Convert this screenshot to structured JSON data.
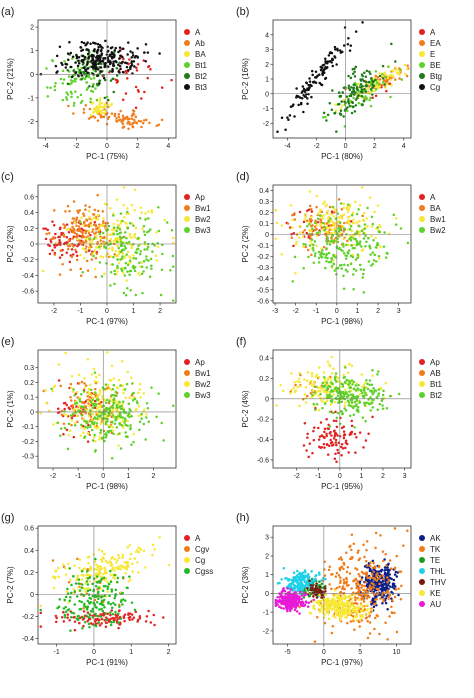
{
  "chart_data": [
    {
      "type": "scatter",
      "panel_label": "(a)",
      "xlabel": "PC-1 (75%)",
      "ylabel": "PC-2 (21%)",
      "xlim": [
        -4.5,
        4.5
      ],
      "ylim": [
        -2.7,
        2.3
      ],
      "xticks": [
        -4,
        -2,
        0,
        2,
        4
      ],
      "yticks": [
        -2,
        -1,
        0,
        1,
        2
      ],
      "grid": false,
      "legend_position": "right",
      "series": [
        {
          "name": "A",
          "color": "#e32222",
          "n": 40,
          "cx": 1.6,
          "cy": -0.1,
          "sx": 1.0,
          "sy": 0.6,
          "rho": 0.0
        },
        {
          "name": "Ab",
          "color": "#f07c1a",
          "n": 90,
          "cx": 0.7,
          "cy": -1.8,
          "sx": 1.3,
          "sy": 0.22,
          "rho": -0.65
        },
        {
          "name": "BA",
          "color": "#f7e836",
          "n": 40,
          "cx": -0.4,
          "cy": -1.4,
          "sx": 0.5,
          "sy": 0.2,
          "rho": 0.0
        },
        {
          "name": "Bt1",
          "color": "#5ed12a",
          "n": 90,
          "cx": -1.8,
          "cy": -0.2,
          "sx": 0.9,
          "sy": 0.6,
          "rho": 0.1
        },
        {
          "name": "Bt2",
          "color": "#1f7a1a",
          "n": 60,
          "cx": -1.0,
          "cy": 0.1,
          "sx": 0.9,
          "sy": 0.45,
          "rho": 0.0
        },
        {
          "name": "Bt3",
          "color": "#111111",
          "n": 230,
          "cx": -0.4,
          "cy": 0.65,
          "sx": 1.2,
          "sy": 0.35,
          "rho": 0.0
        }
      ]
    },
    {
      "type": "scatter",
      "panel_label": "(b)",
      "xlabel": "PC-1 (80%)",
      "ylabel": "PC-2 (16%)",
      "xlim": [
        -5,
        4.5
      ],
      "ylim": [
        -3,
        5
      ],
      "xticks": [
        -4,
        -2,
        0,
        2,
        4
      ],
      "yticks": [
        -2,
        -1,
        0,
        1,
        2,
        3,
        4
      ],
      "grid": false,
      "legend_position": "right",
      "series": [
        {
          "name": "A",
          "color": "#e32222",
          "n": 12,
          "cx": 2.2,
          "cy": 0.2,
          "sx": 0.8,
          "sy": 0.4,
          "rho": 0.5
        },
        {
          "name": "EA",
          "color": "#f07c1a",
          "n": 50,
          "cx": 2.5,
          "cy": 0.8,
          "sx": 0.9,
          "sy": 0.5,
          "rho": 0.85
        },
        {
          "name": "E",
          "color": "#f7e836",
          "n": 90,
          "cx": 1.8,
          "cy": 0.5,
          "sx": 1.0,
          "sy": 0.6,
          "rho": 0.85
        },
        {
          "name": "BE",
          "color": "#5ed12a",
          "n": 50,
          "cx": 1.2,
          "cy": 0.0,
          "sx": 1.0,
          "sy": 0.7,
          "rho": 0.7
        },
        {
          "name": "Btg",
          "color": "#1f7a1a",
          "n": 120,
          "cx": 0.8,
          "cy": 0.3,
          "sx": 1.0,
          "sy": 1.0,
          "rho": 0.6
        },
        {
          "name": "Cg",
          "color": "#111111",
          "n": 120,
          "cx": -2.0,
          "cy": 1.0,
          "sx": 1.1,
          "sy": 1.4,
          "rho": 0.95
        }
      ]
    },
    {
      "type": "scatter",
      "panel_label": "(c)",
      "xlabel": "PC-1 (97%)",
      "ylabel": "PC-2 (2%)",
      "xlim": [
        -2.6,
        2.6
      ],
      "ylim": [
        -0.75,
        0.75
      ],
      "xticks": [
        -2,
        -1,
        0,
        1,
        2
      ],
      "yticks": [
        -0.6,
        -0.4,
        -0.2,
        0,
        0.2,
        0.4,
        0.6
      ],
      "grid": false,
      "legend_position": "right",
      "series": [
        {
          "name": "Ap",
          "color": "#e32222",
          "n": 80,
          "cx": -1.5,
          "cy": 0.05,
          "sx": 0.5,
          "sy": 0.12,
          "rho": 0.0
        },
        {
          "name": "Bw1",
          "color": "#f07c1a",
          "n": 170,
          "cx": -0.8,
          "cy": 0.12,
          "sx": 0.6,
          "sy": 0.2,
          "rho": 0.0
        },
        {
          "name": "Bw2",
          "color": "#f7e836",
          "n": 170,
          "cx": 0.3,
          "cy": 0.05,
          "sx": 0.9,
          "sy": 0.25,
          "rho": 0.0
        },
        {
          "name": "Bw3",
          "color": "#5ed12a",
          "n": 150,
          "cx": 0.9,
          "cy": -0.15,
          "sx": 0.7,
          "sy": 0.25,
          "rho": 0.0
        }
      ]
    },
    {
      "type": "scatter",
      "panel_label": "(d)",
      "xlabel": "PC-1 (98%)",
      "ylabel": "PC-2 (2%)",
      "xlim": [
        -3.1,
        3.6
      ],
      "ylim": [
        -0.62,
        0.45
      ],
      "xticks": [
        -3,
        -2,
        -1,
        0,
        1,
        2,
        3
      ],
      "yticks": [
        -0.6,
        -0.5,
        -0.4,
        -0.3,
        -0.2,
        -0.1,
        0,
        0.1,
        0.2,
        0.3,
        0.4
      ],
      "grid": false,
      "legend_position": "right",
      "series": [
        {
          "name": "A",
          "color": "#e32222",
          "n": 40,
          "cx": -1.0,
          "cy": 0.05,
          "sx": 0.8,
          "sy": 0.08,
          "rho": 0.0
        },
        {
          "name": "BA",
          "color": "#f07c1a",
          "n": 90,
          "cx": -0.6,
          "cy": 0.08,
          "sx": 0.9,
          "sy": 0.1,
          "rho": 0.0
        },
        {
          "name": "Bw1",
          "color": "#f7e836",
          "n": 180,
          "cx": 0.2,
          "cy": 0.1,
          "sx": 1.1,
          "sy": 0.14,
          "rho": 0.0
        },
        {
          "name": "Bw2",
          "color": "#5ed12a",
          "n": 200,
          "cx": 0.4,
          "cy": -0.1,
          "sx": 1.1,
          "sy": 0.15,
          "rho": 0.0
        }
      ]
    },
    {
      "type": "scatter",
      "panel_label": "(e)",
      "xlabel": "PC-1 (98%)",
      "ylabel": "PC-2 (1%)",
      "xlim": [
        -2.6,
        2.9
      ],
      "ylim": [
        -0.38,
        0.42
      ],
      "xticks": [
        -2,
        -1,
        0,
        1,
        2
      ],
      "yticks": [
        -0.3,
        -0.2,
        -0.1,
        0,
        0.1,
        0.2,
        0.3
      ],
      "grid": false,
      "legend_position": "right",
      "series": [
        {
          "name": "Ap",
          "color": "#e32222",
          "n": 50,
          "cx": -0.9,
          "cy": 0.0,
          "sx": 0.6,
          "sy": 0.07,
          "rho": 0.0
        },
        {
          "name": "Bw1",
          "color": "#f07c1a",
          "n": 100,
          "cx": -0.5,
          "cy": 0.03,
          "sx": 0.7,
          "sy": 0.09,
          "rho": 0.0
        },
        {
          "name": "Bw2",
          "color": "#f7e836",
          "n": 200,
          "cx": 0.0,
          "cy": 0.04,
          "sx": 0.9,
          "sy": 0.12,
          "rho": 0.0
        },
        {
          "name": "Bw3",
          "color": "#5ed12a",
          "n": 220,
          "cx": 0.2,
          "cy": -0.02,
          "sx": 0.8,
          "sy": 0.1,
          "rho": 0.0
        }
      ]
    },
    {
      "type": "scatter",
      "panel_label": "(f)",
      "xlabel": "PC-1 (95%)",
      "ylabel": "PC-2 (4%)",
      "xlim": [
        -3.1,
        3.3
      ],
      "ylim": [
        -0.68,
        0.48
      ],
      "xticks": [
        -2,
        -1,
        0,
        1,
        2,
        3
      ],
      "yticks": [
        -0.6,
        -0.4,
        -0.2,
        0,
        0.2,
        0.4
      ],
      "grid": false,
      "legend_position": "right",
      "series": [
        {
          "name": "Ap",
          "color": "#e32222",
          "n": 100,
          "cx": -0.4,
          "cy": -0.38,
          "sx": 0.65,
          "sy": 0.1,
          "rho": 0.0
        },
        {
          "name": "AB",
          "color": "#f07c1a",
          "n": 25,
          "cx": -1.1,
          "cy": 0.08,
          "sx": 0.6,
          "sy": 0.08,
          "rho": 0.0
        },
        {
          "name": "Bt1",
          "color": "#f7e836",
          "n": 150,
          "cx": -0.5,
          "cy": 0.12,
          "sx": 0.9,
          "sy": 0.1,
          "rho": 0.0
        },
        {
          "name": "Bt2",
          "color": "#5ed12a",
          "n": 220,
          "cx": 0.5,
          "cy": 0.03,
          "sx": 0.85,
          "sy": 0.1,
          "rho": 0.0
        }
      ]
    },
    {
      "type": "scatter",
      "panel_label": "(g)",
      "xlabel": "PC-1 (91%)",
      "ylabel": "PC-2 (7%)",
      "xlim": [
        -1.5,
        2.2
      ],
      "ylim": [
        -0.45,
        0.62
      ],
      "xticks": [
        -1,
        0,
        1,
        2
      ],
      "yticks": [
        -0.4,
        -0.2,
        0,
        0.2,
        0.4,
        0.6
      ],
      "grid": false,
      "legend_position": "right",
      "series": [
        {
          "name": "A",
          "color": "#e32222",
          "n": 120,
          "cx": 0.2,
          "cy": -0.22,
          "sx": 0.7,
          "sy": 0.04,
          "rho": 0.0
        },
        {
          "name": "Cgv",
          "color": "#f07c1a",
          "n": 30,
          "cx": -0.2,
          "cy": 0.1,
          "sx": 0.5,
          "sy": 0.12,
          "rho": 0.0
        },
        {
          "name": "Cg",
          "color": "#f7e836",
          "n": 180,
          "cx": 0.2,
          "cy": 0.22,
          "sx": 0.65,
          "sy": 0.1,
          "rho": 0.5
        },
        {
          "name": "Cgss",
          "color": "#22bb22",
          "n": 180,
          "cx": 0.0,
          "cy": -0.05,
          "sx": 0.5,
          "sy": 0.12,
          "rho": 0.0
        }
      ]
    },
    {
      "type": "scatter",
      "panel_label": "(h)",
      "xlabel": "PC-1 (97%)",
      "ylabel": "PC-2 (3%)",
      "xlim": [
        -7,
        12
      ],
      "ylim": [
        -2.7,
        3.6
      ],
      "xticks": [
        -5,
        0,
        5,
        10
      ],
      "yticks": [
        -2,
        -1,
        0,
        1,
        2,
        3
      ],
      "grid": false,
      "legend_position": "right",
      "series": [
        {
          "name": "AK",
          "color": "#0c1f8a",
          "n": 300,
          "cx": 7.5,
          "cy": 0.5,
          "sx": 1.1,
          "sy": 0.5,
          "rho": 0.0
        },
        {
          "name": "TK",
          "color": "#f07c1a",
          "n": 320,
          "cx": 5.0,
          "cy": 0.3,
          "sx": 2.5,
          "sy": 1.2,
          "rho": 0.2
        },
        {
          "name": "TE",
          "color": "#1f9a1a",
          "n": 60,
          "cx": -1.5,
          "cy": 0.2,
          "sx": 0.9,
          "sy": 0.25,
          "rho": 0.0
        },
        {
          "name": "THL",
          "color": "#1fd0e8",
          "n": 200,
          "cx": -3.0,
          "cy": 0.6,
          "sx": 1.1,
          "sy": 0.3,
          "rho": 0.0
        },
        {
          "name": "THV",
          "color": "#7a1a0a",
          "n": 60,
          "cx": -1.0,
          "cy": 0.1,
          "sx": 0.6,
          "sy": 0.2,
          "rho": 0.0
        },
        {
          "name": "KE",
          "color": "#f7e836",
          "n": 280,
          "cx": 2.0,
          "cy": -0.7,
          "sx": 1.6,
          "sy": 0.3,
          "rho": -0.2
        },
        {
          "name": "AU",
          "color": "#e81ad6",
          "n": 280,
          "cx": -4.5,
          "cy": -0.4,
          "sx": 0.9,
          "sy": 0.25,
          "rho": 0.0
        }
      ]
    }
  ]
}
